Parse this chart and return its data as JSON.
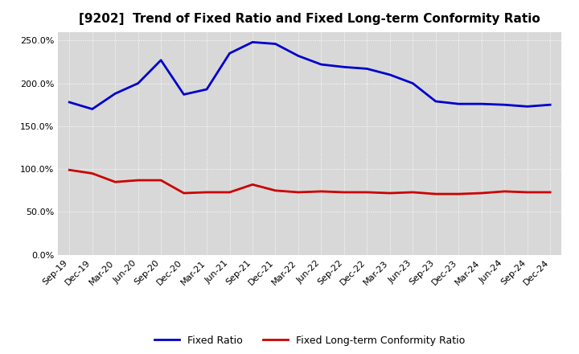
{
  "title": "[9202]  Trend of Fixed Ratio and Fixed Long-term Conformity Ratio",
  "x_labels": [
    "Sep-19",
    "Dec-19",
    "Mar-20",
    "Jun-20",
    "Sep-20",
    "Dec-20",
    "Mar-21",
    "Jun-21",
    "Sep-21",
    "Dec-21",
    "Mar-22",
    "Jun-22",
    "Sep-22",
    "Dec-22",
    "Mar-23",
    "Jun-23",
    "Sep-23",
    "Dec-23",
    "Mar-24",
    "Jun-24",
    "Sep-24",
    "Dec-24"
  ],
  "fixed_ratio": [
    1.78,
    1.7,
    1.88,
    2.0,
    2.27,
    1.87,
    1.93,
    2.35,
    2.48,
    2.46,
    2.32,
    2.22,
    2.19,
    2.17,
    2.1,
    2.0,
    1.79,
    1.76,
    1.76,
    1.75,
    1.73,
    1.75
  ],
  "fixed_lt_ratio": [
    0.99,
    0.95,
    0.85,
    0.87,
    0.87,
    0.72,
    0.73,
    0.73,
    0.82,
    0.75,
    0.73,
    0.74,
    0.73,
    0.73,
    0.72,
    0.73,
    0.71,
    0.71,
    0.72,
    0.74,
    0.73,
    0.73
  ],
  "fixed_ratio_color": "#0000cc",
  "fixed_lt_ratio_color": "#cc0000",
  "ylim": [
    0.0,
    2.6
  ],
  "yticks": [
    0.0,
    0.5,
    1.0,
    1.5,
    2.0,
    2.5
  ],
  "background_color": "#ffffff",
  "plot_background_color": "#d8d8d8",
  "grid_color": "#ffffff",
  "legend_fixed_ratio": "Fixed Ratio",
  "legend_fixed_lt_ratio": "Fixed Long-term Conformity Ratio",
  "title_fontsize": 11,
  "tick_fontsize": 8,
  "legend_fontsize": 9,
  "line_width": 2.0
}
